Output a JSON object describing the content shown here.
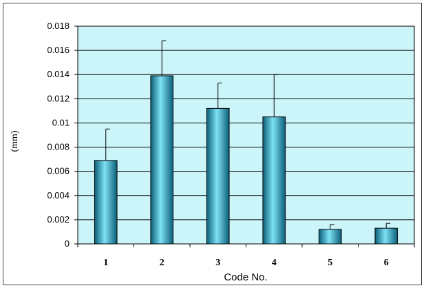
{
  "chart_data": {
    "type": "bar",
    "title": "",
    "xlabel": "Code No.",
    "ylabel": "(mm)",
    "categories": [
      "1",
      "2",
      "3",
      "4",
      "5",
      "6"
    ],
    "values": [
      0.0069,
      0.0139,
      0.0112,
      0.0105,
      0.0012,
      0.0013
    ],
    "error_plus": [
      0.0026,
      0.0029,
      0.0021,
      0.0035,
      0.0004,
      0.0004
    ],
    "ylim": [
      0,
      0.018
    ],
    "yticks": [
      "0",
      "0.002",
      "0.004",
      "0.006",
      "0.008",
      "0.01",
      "0.012",
      "0.014",
      "0.016",
      "0.018"
    ],
    "ytick_values": [
      0,
      0.002,
      0.004,
      0.006,
      0.008,
      0.01,
      0.012,
      0.014,
      0.016,
      0.018
    ],
    "grid": true,
    "legend": "none",
    "colors": {
      "plot_background": "#ccf5fa",
      "bar_dark": "#0a5f78",
      "bar_mid": "#1aa6c9",
      "bar_light": "#7fe1f5",
      "gridline": "#000000"
    }
  }
}
